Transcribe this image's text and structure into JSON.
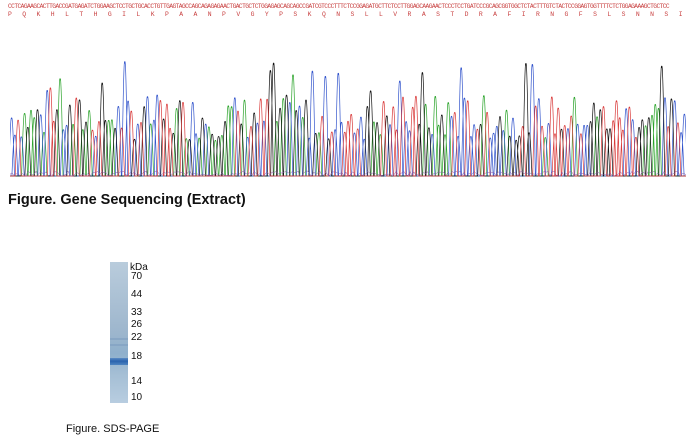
{
  "sequence": {
    "dna": "CCTCAGAAGCACTTGACCGATGAGATCTGGAAGCTCCTGCTGCACCTGTTGAGTAGCCAGCAGAGAGAACTGACTGCTCTGGAGAGCAGCAGCCGATCGTCCCTTTCTCCGGAGATGCTTCTCCTTGGAGCAAGAACTCCCTCCTGATCCCGCAGCGGTGGCTCTACTTTGTCTACTCCGGAGTGGTTTTCTCTGGAGAAAGCTGCTCC",
    "protein": "P Q K H L T H G I L K P A A N P V G Y P S K Q N S L L V R A S T D R A F I R N G F S L S N N S I I I P T S G L Y F V Y S Q V V F S G E S C S",
    "trace_colors": {
      "A": "#2aa32a",
      "C": "#3355cc",
      "G": "#111111",
      "T": "#d93a3a"
    },
    "caption": "Figure. Gene Sequencing (Extract)"
  },
  "gel": {
    "unit": "kDa",
    "markers": [
      "70",
      "44",
      "33",
      "26",
      "22",
      "18",
      "14",
      "10"
    ],
    "band_color": "#2a63ad",
    "caption": "Figure. SDS-PAGE"
  }
}
